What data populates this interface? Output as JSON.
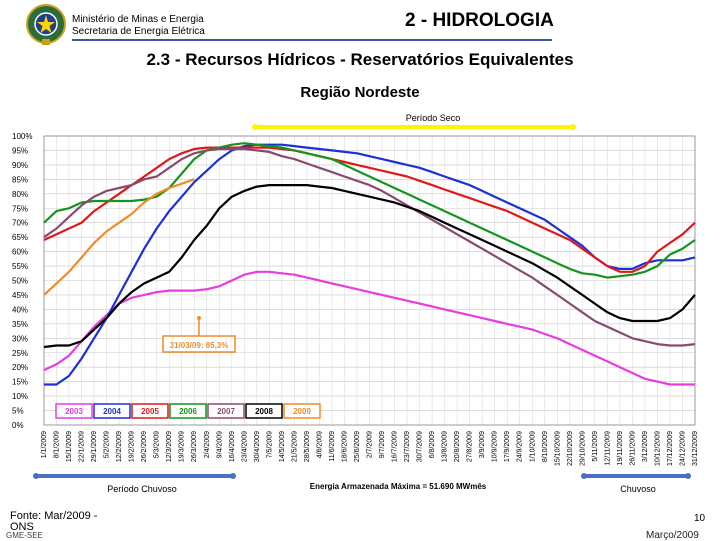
{
  "header": {
    "ministry_line1": "Ministério de Minas e Energia",
    "ministry_line2": "Secretaria de Energia Elétrica",
    "section_title": "2 - HIDROLOGIA",
    "page_title": "2.3 - Recursos Hídricos - Reservatórios Equivalentes",
    "region_title": "Região Nordeste"
  },
  "footer": {
    "source": "Fonte: Mar/2009 - ONS",
    "left_label": "GME-SEE",
    "page_number": "10",
    "date": "Março/2009"
  },
  "colors": {
    "2003": "#e83ce0",
    "2004": "#1f2fd6",
    "2005": "#e01818",
    "2006": "#14961e",
    "2007": "#8a4a70",
    "2008": "#000000",
    "2009": "#f08c28",
    "dry_bar": "#fff400",
    "wet_bar": "#4a6fc7"
  },
  "chart_data": {
    "type": "line",
    "title": "Região Nordeste",
    "ylabel": "",
    "xlabel": "Energia Armazenada Máxima = 51.690 MWmês",
    "ylim": [
      0,
      100
    ],
    "yticks": [
      "0%",
      "5%",
      "10%",
      "15%",
      "20%",
      "25%",
      "30%",
      "35%",
      "40%",
      "45%",
      "50%",
      "55%",
      "60%",
      "65%",
      "70%",
      "75%",
      "80%",
      "85%",
      "90%",
      "95%",
      "100%"
    ],
    "x_dates": [
      "1/1/2009",
      "8/1/2009",
      "15/1/2009",
      "22/1/2009",
      "29/1/2009",
      "5/2/2009",
      "12/2/2009",
      "19/2/2009",
      "26/2/2009",
      "5/3/2009",
      "12/3/2009",
      "19/3/2009",
      "26/3/2009",
      "2/4/2009",
      "9/4/2009",
      "16/4/2009",
      "23/4/2009",
      "30/4/2009",
      "7/5/2009",
      "14/5/2009",
      "21/5/2009",
      "28/5/2009",
      "4/6/2009",
      "11/6/2009",
      "18/6/2009",
      "25/6/2009",
      "2/7/2009",
      "9/7/2009",
      "16/7/2009",
      "23/7/2009",
      "30/7/2009",
      "6/8/2009",
      "13/8/2009",
      "20/8/2009",
      "27/8/2009",
      "3/9/2009",
      "10/9/2009",
      "17/9/2009",
      "24/9/2009",
      "1/10/2009",
      "8/10/2009",
      "15/10/2009",
      "22/10/2009",
      "29/10/2009",
      "5/11/2009",
      "12/11/2009",
      "19/11/2009",
      "26/11/2009",
      "3/12/2009",
      "10/12/2009",
      "17/12/2009",
      "24/12/2009",
      "31/12/2009"
    ],
    "series": [
      {
        "name": "2003",
        "values": [
          19,
          21,
          24,
          29,
          34,
          38,
          42,
          44,
          45,
          46,
          46.5,
          46.5,
          46.5,
          47,
          48,
          50,
          52,
          53,
          53,
          52.5,
          52,
          51,
          50,
          49,
          48,
          47,
          46,
          45,
          44,
          43,
          42,
          41,
          40,
          39,
          38,
          37,
          36,
          35,
          34,
          33,
          31.5,
          30,
          28,
          26,
          24,
          22,
          20,
          18,
          16,
          15,
          14,
          14,
          14
        ]
      },
      {
        "name": "2004",
        "values": [
          14,
          14,
          17,
          23,
          30,
          37,
          45,
          53,
          61,
          68,
          74,
          79,
          84,
          88,
          92,
          95,
          96.5,
          97,
          97,
          97,
          96.5,
          96,
          95.5,
          95,
          94.5,
          94,
          93,
          92,
          91,
          90,
          89,
          87.5,
          86,
          84.5,
          83,
          81,
          79,
          77,
          75,
          73,
          71,
          68,
          65,
          62,
          58,
          55,
          54,
          54,
          56,
          57,
          57,
          57,
          58
        ]
      },
      {
        "name": "2005",
        "values": [
          64,
          66,
          68,
          70,
          74,
          77,
          80,
          83,
          86,
          89,
          92,
          94,
          95.5,
          96,
          96,
          96,
          96,
          96,
          96,
          95.5,
          95,
          94,
          93,
          92,
          91,
          90,
          89,
          88,
          87,
          86,
          84.5,
          83,
          81.5,
          80,
          78.5,
          77,
          75.5,
          74,
          72,
          70,
          68,
          66,
          64,
          61,
          58,
          55,
          53,
          53,
          55,
          60,
          63,
          66,
          70
        ]
      },
      {
        "name": "2006",
        "values": [
          70,
          74,
          75,
          77,
          77.5,
          77.5,
          77.5,
          77.5,
          78,
          79,
          82,
          87,
          92,
          95,
          96,
          97,
          97.5,
          97,
          96.5,
          96,
          95,
          94,
          93,
          92,
          90,
          88,
          86,
          84,
          82,
          80,
          78,
          76,
          74,
          72,
          70,
          68,
          66,
          64,
          62,
          60,
          58,
          56,
          54,
          52.5,
          52,
          51,
          51.5,
          52,
          53,
          55,
          59,
          61,
          64
        ]
      },
      {
        "name": "2007",
        "values": [
          65,
          68,
          72,
          76,
          79,
          81,
          82,
          83,
          85,
          86,
          89,
          92,
          94,
          95,
          95.5,
          95.5,
          95.5,
          95,
          94.5,
          93,
          92,
          90.5,
          89,
          87.5,
          86,
          84.5,
          83,
          81,
          78.5,
          76,
          73.5,
          71,
          68.5,
          66,
          63.5,
          61,
          58.5,
          56,
          53.5,
          51,
          48,
          45,
          42,
          39,
          36,
          34,
          32,
          30,
          29,
          28,
          27.5,
          27.5,
          28
        ]
      },
      {
        "name": "2008",
        "values": [
          27,
          27.5,
          27.5,
          29,
          33,
          37,
          42,
          46,
          49,
          51,
          53,
          58,
          64,
          69,
          75,
          79,
          81,
          82.5,
          83,
          83,
          83,
          83,
          82.5,
          82,
          81,
          80,
          79,
          78,
          77,
          75.5,
          74,
          72,
          70,
          68,
          66,
          64,
          62,
          60,
          58,
          56,
          53.5,
          51,
          48,
          45,
          42,
          39,
          37,
          36,
          36,
          36,
          37,
          40,
          45
        ]
      },
      {
        "name": "2009",
        "values": [
          45,
          49,
          53,
          58,
          63,
          67,
          70,
          73,
          77,
          80,
          82,
          83.5,
          85
        ]
      }
    ],
    "legend": [
      "2003",
      "2004",
      "2005",
      "2006",
      "2007",
      "2008",
      "2009"
    ],
    "legend_position": "bottom-left",
    "annotations": {
      "current_value": "31/03/09: 85,3%",
      "dry_period": "Período Seco",
      "wet_period_start": "Período Chuvoso",
      "wet_period_end": "Chuvoso"
    }
  }
}
